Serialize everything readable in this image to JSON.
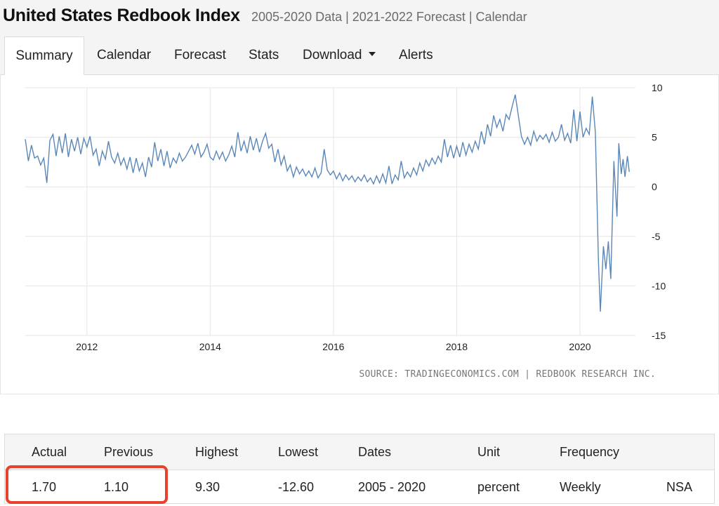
{
  "header": {
    "title": "United States Redbook Index",
    "subtitle": "2005-2020 Data | 2021-2022 Forecast | Calendar"
  },
  "tabs": [
    {
      "label": "Summary",
      "active": true
    },
    {
      "label": "Calendar"
    },
    {
      "label": "Forecast"
    },
    {
      "label": "Stats"
    },
    {
      "label": "Download",
      "dropdown": true
    },
    {
      "label": "Alerts"
    }
  ],
  "chart": {
    "source": "SOURCE: TRADINGECONOMICS.COM | REDBOOK RESEARCH INC."
  },
  "chart_data": {
    "type": "line",
    "x_tick_labels": [
      "2012",
      "2014",
      "2016",
      "2018",
      "2020"
    ],
    "y_tick_labels": [
      "10",
      "5",
      "0",
      "-5",
      "-10",
      "-15"
    ],
    "ylim": [
      -15,
      10
    ],
    "xlim": [
      2011.0,
      2020.9
    ],
    "grid": "vertical",
    "line_color": "#5a87b8",
    "series": [
      {
        "points": [
          [
            2011.0,
            4.8
          ],
          [
            2011.05,
            2.6
          ],
          [
            2011.1,
            4.2
          ],
          [
            2011.15,
            2.9
          ],
          [
            2011.2,
            3.1
          ],
          [
            2011.25,
            2.2
          ],
          [
            2011.3,
            2.9
          ],
          [
            2011.35,
            0.4
          ],
          [
            2011.4,
            4.7
          ],
          [
            2011.45,
            5.3
          ],
          [
            2011.5,
            3.1
          ],
          [
            2011.55,
            5.1
          ],
          [
            2011.6,
            3.4
          ],
          [
            2011.65,
            5.4
          ],
          [
            2011.7,
            3.0
          ],
          [
            2011.75,
            4.8
          ],
          [
            2011.8,
            3.6
          ],
          [
            2011.85,
            5.0
          ],
          [
            2011.9,
            3.3
          ],
          [
            2011.95,
            4.9
          ],
          [
            2012.0,
            4.0
          ],
          [
            2012.05,
            5.1
          ],
          [
            2012.1,
            3.2
          ],
          [
            2012.15,
            3.8
          ],
          [
            2012.2,
            2.1
          ],
          [
            2012.25,
            3.6
          ],
          [
            2012.3,
            2.8
          ],
          [
            2012.35,
            4.6
          ],
          [
            2012.4,
            3.0
          ],
          [
            2012.45,
            2.4
          ],
          [
            2012.5,
            3.4
          ],
          [
            2012.55,
            2.2
          ],
          [
            2012.6,
            2.9
          ],
          [
            2012.65,
            1.8
          ],
          [
            2012.7,
            3.0
          ],
          [
            2012.75,
            1.4
          ],
          [
            2012.8,
            2.9
          ],
          [
            2012.85,
            1.6
          ],
          [
            2012.9,
            2.4
          ],
          [
            2012.95,
            1.0
          ],
          [
            2013.0,
            3.0
          ],
          [
            2013.05,
            2.0
          ],
          [
            2013.1,
            4.5
          ],
          [
            2013.15,
            2.6
          ],
          [
            2013.2,
            3.8
          ],
          [
            2013.25,
            2.1
          ],
          [
            2013.3,
            3.6
          ],
          [
            2013.35,
            1.9
          ],
          [
            2013.4,
            2.9
          ],
          [
            2013.45,
            2.4
          ],
          [
            2013.5,
            3.4
          ],
          [
            2013.55,
            2.6
          ],
          [
            2013.6,
            3.0
          ],
          [
            2013.65,
            3.6
          ],
          [
            2013.7,
            4.2
          ],
          [
            2013.75,
            3.3
          ],
          [
            2013.8,
            4.4
          ],
          [
            2013.85,
            3.0
          ],
          [
            2013.9,
            3.5
          ],
          [
            2013.95,
            4.3
          ],
          [
            2014.0,
            3.0
          ],
          [
            2014.05,
            2.7
          ],
          [
            2014.1,
            3.6
          ],
          [
            2014.15,
            2.8
          ],
          [
            2014.2,
            3.5
          ],
          [
            2014.25,
            2.6
          ],
          [
            2014.3,
            3.2
          ],
          [
            2014.35,
            4.1
          ],
          [
            2014.4,
            3.0
          ],
          [
            2014.45,
            5.5
          ],
          [
            2014.5,
            3.6
          ],
          [
            2014.55,
            4.6
          ],
          [
            2014.6,
            3.4
          ],
          [
            2014.65,
            5.1
          ],
          [
            2014.7,
            3.7
          ],
          [
            2014.75,
            4.9
          ],
          [
            2014.8,
            3.5
          ],
          [
            2014.85,
            4.6
          ],
          [
            2014.9,
            5.4
          ],
          [
            2014.95,
            3.9
          ],
          [
            2015.0,
            4.3
          ],
          [
            2015.05,
            2.5
          ],
          [
            2015.1,
            3.8
          ],
          [
            2015.15,
            2.2
          ],
          [
            2015.2,
            3.1
          ],
          [
            2015.25,
            1.6
          ],
          [
            2015.3,
            2.2
          ],
          [
            2015.35,
            1.0
          ],
          [
            2015.4,
            2.0
          ],
          [
            2015.45,
            1.3
          ],
          [
            2015.5,
            1.8
          ],
          [
            2015.55,
            1.1
          ],
          [
            2015.6,
            1.6
          ],
          [
            2015.65,
            1.0
          ],
          [
            2015.7,
            1.9
          ],
          [
            2015.75,
            0.9
          ],
          [
            2015.8,
            1.4
          ],
          [
            2015.85,
            3.8
          ],
          [
            2015.9,
            1.7
          ],
          [
            2015.95,
            1.2
          ],
          [
            2016.0,
            1.6
          ],
          [
            2016.05,
            0.8
          ],
          [
            2016.1,
            1.4
          ],
          [
            2016.15,
            0.6
          ],
          [
            2016.2,
            1.2
          ],
          [
            2016.25,
            0.7
          ],
          [
            2016.3,
            1.1
          ],
          [
            2016.35,
            0.5
          ],
          [
            2016.4,
            1.0
          ],
          [
            2016.45,
            0.6
          ],
          [
            2016.5,
            1.2
          ],
          [
            2016.55,
            0.5
          ],
          [
            2016.6,
            0.9
          ],
          [
            2016.65,
            0.3
          ],
          [
            2016.7,
            1.1
          ],
          [
            2016.75,
            0.4
          ],
          [
            2016.8,
            1.3
          ],
          [
            2016.85,
            0.4
          ],
          [
            2016.9,
            2.1
          ],
          [
            2016.95,
            0.3
          ],
          [
            2017.0,
            1.2
          ],
          [
            2017.05,
            0.7
          ],
          [
            2017.1,
            2.6
          ],
          [
            2017.15,
            0.9
          ],
          [
            2017.2,
            1.5
          ],
          [
            2017.25,
            1.0
          ],
          [
            2017.3,
            1.9
          ],
          [
            2017.35,
            1.2
          ],
          [
            2017.4,
            2.4
          ],
          [
            2017.45,
            1.6
          ],
          [
            2017.5,
            2.7
          ],
          [
            2017.55,
            2.1
          ],
          [
            2017.6,
            2.9
          ],
          [
            2017.65,
            2.3
          ],
          [
            2017.7,
            3.1
          ],
          [
            2017.75,
            2.5
          ],
          [
            2017.8,
            4.8
          ],
          [
            2017.85,
            3.0
          ],
          [
            2017.9,
            4.2
          ],
          [
            2017.95,
            2.9
          ],
          [
            2018.0,
            4.1
          ],
          [
            2018.05,
            3.0
          ],
          [
            2018.1,
            4.5
          ],
          [
            2018.15,
            3.2
          ],
          [
            2018.2,
            4.3
          ],
          [
            2018.25,
            3.5
          ],
          [
            2018.3,
            4.6
          ],
          [
            2018.35,
            3.8
          ],
          [
            2018.4,
            5.6
          ],
          [
            2018.45,
            4.3
          ],
          [
            2018.5,
            6.3
          ],
          [
            2018.55,
            5.1
          ],
          [
            2018.6,
            7.2
          ],
          [
            2018.65,
            6.0
          ],
          [
            2018.7,
            6.8
          ],
          [
            2018.75,
            5.6
          ],
          [
            2018.8,
            7.3
          ],
          [
            2018.85,
            6.8
          ],
          [
            2018.9,
            8.1
          ],
          [
            2018.95,
            9.3
          ],
          [
            2019.0,
            7.2
          ],
          [
            2019.05,
            5.1
          ],
          [
            2019.1,
            4.3
          ],
          [
            2019.15,
            5.0
          ],
          [
            2019.2,
            4.2
          ],
          [
            2019.25,
            5.6
          ],
          [
            2019.3,
            4.6
          ],
          [
            2019.35,
            5.2
          ],
          [
            2019.4,
            4.8
          ],
          [
            2019.45,
            5.3
          ],
          [
            2019.5,
            4.5
          ],
          [
            2019.55,
            5.5
          ],
          [
            2019.6,
            4.6
          ],
          [
            2019.65,
            5.0
          ],
          [
            2019.7,
            6.3
          ],
          [
            2019.75,
            4.7
          ],
          [
            2019.8,
            5.4
          ],
          [
            2019.85,
            4.4
          ],
          [
            2019.9,
            7.8
          ],
          [
            2019.95,
            4.6
          ],
          [
            2020.0,
            7.6
          ],
          [
            2020.05,
            5.0
          ],
          [
            2020.1,
            5.9
          ],
          [
            2020.15,
            5.3
          ],
          [
            2020.2,
            9.1
          ],
          [
            2020.25,
            5.5
          ],
          [
            2020.3,
            -7.5
          ],
          [
            2020.33,
            -12.6
          ],
          [
            2020.38,
            -6.0
          ],
          [
            2020.42,
            -8.3
          ],
          [
            2020.46,
            -5.5
          ],
          [
            2020.5,
            -9.3
          ],
          [
            2020.55,
            2.6
          ],
          [
            2020.6,
            -3.0
          ],
          [
            2020.63,
            4.4
          ],
          [
            2020.67,
            1.3
          ],
          [
            2020.7,
            2.8
          ],
          [
            2020.73,
            1.0
          ],
          [
            2020.77,
            3.1
          ],
          [
            2020.8,
            1.5
          ]
        ]
      }
    ]
  },
  "stats": {
    "headers": [
      "Actual",
      "Previous",
      "Highest",
      "Lowest",
      "Dates",
      "Unit",
      "Frequency",
      ""
    ],
    "values": [
      "1.70",
      "1.10",
      "9.30",
      "-12.60",
      "2005 - 2020",
      "percent",
      "Weekly",
      "NSA"
    ]
  },
  "highlight_color": "#e8412c"
}
